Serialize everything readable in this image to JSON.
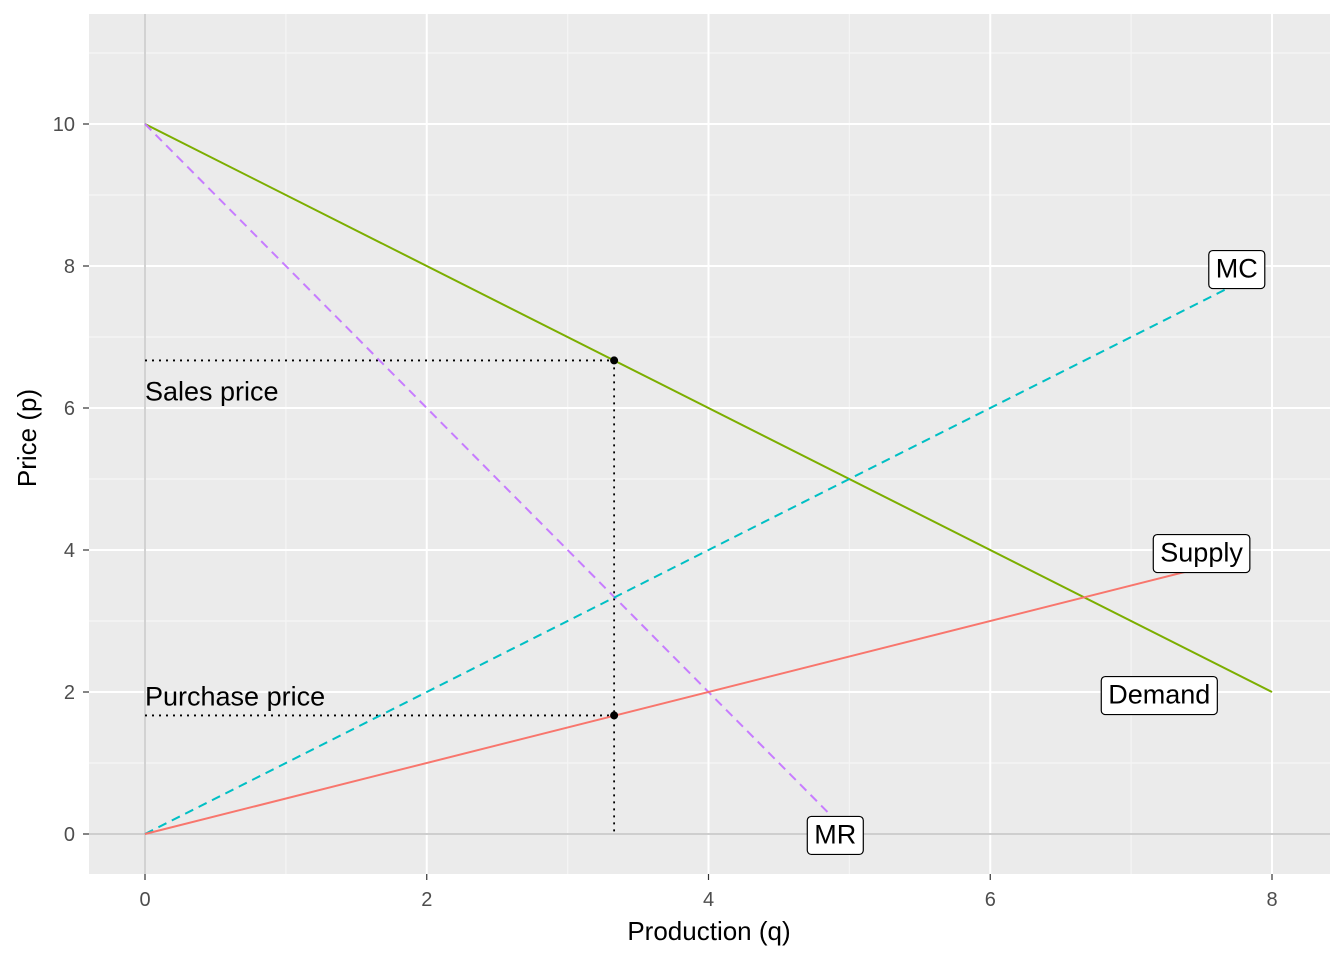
{
  "chart_data": {
    "type": "line",
    "xlabel": "Production (q)",
    "ylabel": "Price (p)",
    "xlim": [
      0,
      8
    ],
    "ylim": [
      0,
      10
    ],
    "x_ticks": [
      "0",
      "2",
      "4",
      "6",
      "8"
    ],
    "y_ticks": [
      "0",
      "2",
      "4",
      "6",
      "8",
      "10"
    ],
    "grid": true,
    "series": [
      {
        "name": "Demand",
        "style": "solid",
        "color": "#7CAE00",
        "x": [
          0,
          8
        ],
        "y": [
          10,
          2
        ]
      },
      {
        "name": "MR",
        "style": "dashed",
        "color": "#C77CFF",
        "x": [
          0,
          4.85
        ],
        "y": [
          10,
          0.3
        ]
      },
      {
        "name": "MC",
        "style": "dashed",
        "color": "#00BFC4",
        "x": [
          0,
          7.75
        ],
        "y": [
          0,
          7.75
        ]
      },
      {
        "name": "Supply",
        "style": "solid",
        "color": "#F8766D",
        "x": [
          0,
          7.5
        ],
        "y": [
          0,
          3.75
        ]
      }
    ],
    "labels": [
      {
        "text": "MC",
        "x": 7.75,
        "y": 7.95
      },
      {
        "text": "Supply",
        "x": 7.5,
        "y": 3.95
      },
      {
        "text": "Demand",
        "x": 7.2,
        "y": 1.95
      },
      {
        "text": "MR",
        "x": 4.9,
        "y": -0.02
      }
    ],
    "points": [
      {
        "x": 3.33,
        "y": 6.67
      },
      {
        "x": 3.33,
        "y": 1.67
      }
    ],
    "annotations": [
      {
        "text": "Sales price",
        "x": 0,
        "y": 6.25
      },
      {
        "text": "Purchase price",
        "x": 0,
        "y": 1.95
      }
    ]
  }
}
